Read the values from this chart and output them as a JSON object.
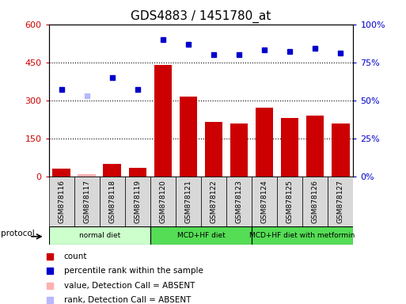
{
  "title": "GDS4883 / 1451780_at",
  "samples": [
    "GSM878116",
    "GSM878117",
    "GSM878118",
    "GSM878119",
    "GSM878120",
    "GSM878121",
    "GSM878122",
    "GSM878123",
    "GSM878124",
    "GSM878125",
    "GSM878126",
    "GSM878127"
  ],
  "bar_values": [
    30,
    10,
    50,
    35,
    440,
    315,
    215,
    210,
    270,
    230,
    240,
    210
  ],
  "bar_absent": [
    false,
    true,
    false,
    false,
    false,
    false,
    false,
    false,
    false,
    false,
    false,
    false
  ],
  "rank_values": [
    57,
    null,
    65,
    57,
    90,
    87,
    80,
    80,
    83,
    82,
    84,
    81
  ],
  "rank_absent_values": [
    null,
    53,
    null,
    null,
    null,
    null,
    null,
    null,
    null,
    null,
    null,
    null
  ],
  "ylim_left": [
    0,
    600
  ],
  "ylim_right": [
    0,
    100
  ],
  "yticks_left": [
    0,
    150,
    300,
    450,
    600
  ],
  "yticks_right": [
    0,
    25,
    50,
    75,
    100
  ],
  "bar_color": "#cc0000",
  "bar_absent_color": "#ffb0b0",
  "rank_color": "#0000cc",
  "rank_absent_color": "#b8b8ff",
  "protocol_groups": [
    {
      "label": "normal diet",
      "start": 0,
      "end": 4,
      "color": "#ccffcc"
    },
    {
      "label": "MCD+HF diet",
      "start": 4,
      "end": 8,
      "color": "#55dd55"
    },
    {
      "label": "MCD+HF diet with metformin",
      "start": 8,
      "end": 12,
      "color": "#55dd55"
    }
  ],
  "legend_items": [
    {
      "label": "count",
      "color": "#cc0000"
    },
    {
      "label": "percentile rank within the sample",
      "color": "#0000cc"
    },
    {
      "label": "value, Detection Call = ABSENT",
      "color": "#ffb0b0"
    },
    {
      "label": "rank, Detection Call = ABSENT",
      "color": "#b8b8ff"
    }
  ],
  "bg_color": "#ffffff",
  "axis_color_left": "#cc0000",
  "axis_color_right": "#0000cc"
}
